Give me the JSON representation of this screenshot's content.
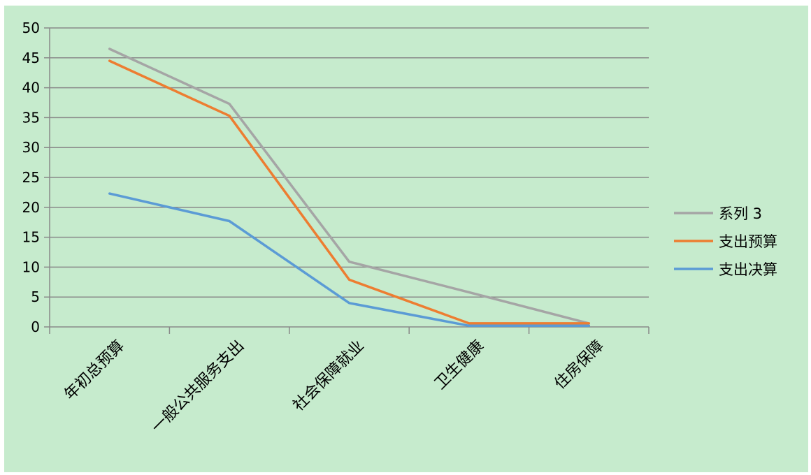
{
  "chart_data": {
    "type": "line",
    "categories": [
      "年初总预算",
      "一般公共服务支出",
      "社会保障就业",
      "卫生健康",
      "住房保障"
    ],
    "series": [
      {
        "name": "系列 3",
        "color": "#a5a5a5",
        "values": [
          46.5,
          37.3,
          10.9,
          5.8,
          0.6
        ]
      },
      {
        "name": "支出预算",
        "color": "#ed7d31",
        "values": [
          44.5,
          35.3,
          7.9,
          0.6,
          0.6
        ]
      },
      {
        "name": "支出决算",
        "color": "#5b9bd5",
        "values": [
          22.3,
          17.7,
          4.0,
          0.2,
          0.2
        ]
      }
    ],
    "ylim": [
      0,
      50
    ],
    "yticks": [
      "0",
      "5",
      "10",
      "15",
      "20",
      "25",
      "30",
      "35",
      "40",
      "45",
      "50"
    ],
    "grid": true,
    "legend_position": "right"
  },
  "colors": {
    "background": "#c6ebcd",
    "gridline": "#898989"
  }
}
